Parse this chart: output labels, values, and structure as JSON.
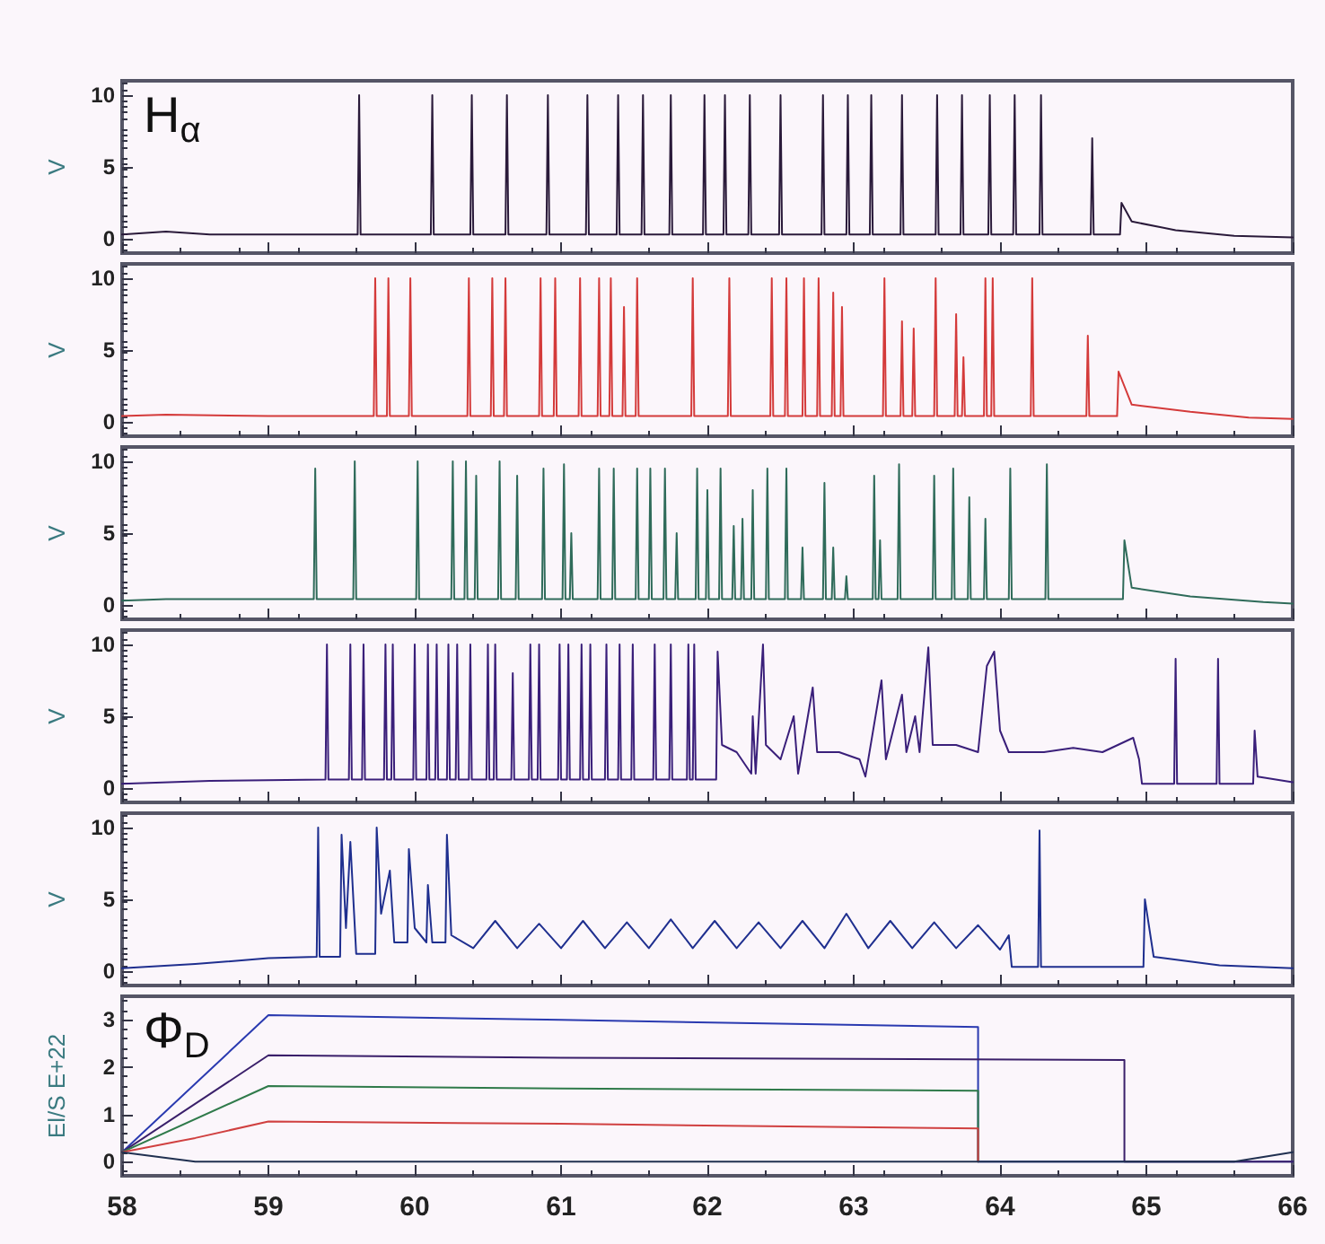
{
  "chart_data": [
    {
      "type": "line",
      "ylabel": "V",
      "annotations": [
        "H$_{α}$"
      ],
      "xlim": [
        58,
        66
      ],
      "xticks": [
        58,
        59,
        60,
        61,
        62,
        63,
        64,
        65,
        66
      ],
      "ylim": [
        -1,
        11
      ],
      "yticks": [
        0,
        5,
        10
      ],
      "tick_labels": "y",
      "marker": "none",
      "series": [
        {
          "color": "#2a1a3a",
          "x": [
            58,
            58.3,
            58.6,
            59.61,
            59.62,
            59.63,
            60.11,
            60.12,
            60.13,
            60.38,
            60.39,
            60.4,
            60.62,
            60.63,
            60.64,
            60.9,
            60.91,
            60.92,
            61.17,
            61.18,
            61.19,
            61.38,
            61.39,
            61.4,
            61.55,
            61.56,
            61.57,
            61.74,
            61.75,
            61.76,
            61.97,
            61.98,
            61.99,
            62.11,
            62.12,
            62.13,
            62.28,
            62.29,
            62.3,
            62.49,
            62.5,
            62.51,
            62.78,
            62.79,
            62.8,
            62.95,
            62.96,
            62.97,
            63.11,
            63.12,
            63.13,
            63.32,
            63.33,
            63.34,
            63.56,
            63.57,
            63.58,
            63.73,
            63.74,
            63.75,
            63.92,
            63.93,
            63.94,
            64.09,
            64.1,
            64.11,
            64.27,
            64.28,
            64.29,
            64.62,
            64.63,
            64.64,
            64.82,
            64.83,
            64.9,
            65.2,
            65.6,
            66
          ],
          "values": [
            0.3,
            0.5,
            0.3,
            0.3,
            10,
            0.3,
            0.3,
            10,
            0.3,
            0.3,
            10,
            0.3,
            0.3,
            10,
            0.3,
            0.3,
            10,
            0.3,
            0.3,
            10,
            0.3,
            0.3,
            10,
            0.3,
            0.3,
            10,
            0.3,
            0.3,
            10,
            0.3,
            0.3,
            10,
            0.3,
            0.3,
            10,
            0.3,
            0.3,
            10,
            0.3,
            0.3,
            10,
            0.3,
            0.3,
            10,
            0.3,
            0.3,
            10,
            0.3,
            0.3,
            10,
            0.3,
            0.3,
            10,
            0.3,
            0.3,
            10,
            0.3,
            0.3,
            10,
            0.3,
            0.3,
            10,
            0.3,
            0.3,
            10,
            0.3,
            0.3,
            10,
            0.3,
            0.3,
            7,
            0.3,
            0.3,
            2.5,
            1.2,
            0.6,
            0.2,
            0.1
          ]
        }
      ]
    },
    {
      "type": "line",
      "ylabel": "V",
      "xlim": [
        58,
        66
      ],
      "xticks": [
        58,
        59,
        60,
        61,
        62,
        63,
        64,
        65,
        66
      ],
      "ylim": [
        -1,
        11
      ],
      "yticks": [
        0,
        5,
        10
      ],
      "tick_labels": "y",
      "marker": "none",
      "series": [
        {
          "color": "#d43a3a",
          "x": [
            58,
            58.3,
            59,
            59.72,
            59.73,
            59.74,
            59.81,
            59.82,
            59.83,
            59.96,
            59.97,
            59.98,
            60.36,
            60.37,
            60.38,
            60.52,
            60.53,
            60.54,
            60.61,
            60.62,
            60.63,
            60.85,
            60.86,
            60.87,
            60.95,
            60.96,
            60.97,
            61.12,
            61.13,
            61.14,
            61.25,
            61.26,
            61.27,
            61.33,
            61.34,
            61.35,
            61.42,
            61.43,
            61.44,
            61.51,
            61.52,
            61.53,
            61.89,
            61.9,
            61.91,
            62.14,
            62.15,
            62.16,
            62.43,
            62.44,
            62.45,
            62.53,
            62.54,
            62.55,
            62.65,
            62.66,
            62.67,
            62.75,
            62.76,
            62.77,
            62.85,
            62.86,
            62.87,
            62.91,
            62.92,
            62.93,
            63.2,
            63.21,
            63.22,
            63.32,
            63.33,
            63.34,
            63.4,
            63.41,
            63.42,
            63.55,
            63.56,
            63.57,
            63.69,
            63.7,
            63.71,
            63.74,
            63.75,
            63.76,
            63.89,
            63.9,
            63.91,
            63.94,
            63.95,
            63.96,
            64.21,
            64.22,
            64.23,
            64.59,
            64.6,
            64.61,
            64.8,
            64.81,
            64.9,
            65.3,
            65.7,
            66
          ],
          "values": [
            0.4,
            0.5,
            0.4,
            0.4,
            10,
            0.4,
            0.4,
            10,
            0.4,
            0.4,
            10,
            0.4,
            0.4,
            10,
            0.4,
            0.4,
            10,
            0.4,
            0.4,
            10,
            0.4,
            0.4,
            10,
            0.4,
            0.4,
            10,
            0.4,
            0.4,
            10,
            0.4,
            0.4,
            10,
            0.4,
            0.4,
            10,
            0.4,
            0.4,
            8,
            0.4,
            0.4,
            10,
            0.4,
            0.4,
            10,
            0.4,
            0.4,
            10,
            0.4,
            0.4,
            10,
            0.4,
            0.4,
            10,
            0.4,
            0.4,
            10,
            0.4,
            0.4,
            10,
            0.4,
            0.4,
            9,
            0.4,
            0.4,
            8,
            0.4,
            0.4,
            10,
            0.4,
            0.4,
            7,
            0.4,
            0.4,
            6.5,
            0.4,
            0.4,
            10,
            0.4,
            0.4,
            7.5,
            0.4,
            0.4,
            4.5,
            0.4,
            0.4,
            10,
            0.4,
            0.4,
            10,
            0.4,
            0.4,
            10,
            0.4,
            0.4,
            6,
            0.4,
            0.4,
            3.5,
            1.2,
            0.7,
            0.3,
            0.2
          ]
        }
      ]
    },
    {
      "type": "line",
      "ylabel": "V",
      "xlim": [
        58,
        66
      ],
      "xticks": [
        58,
        59,
        60,
        61,
        62,
        63,
        64,
        65,
        66
      ],
      "ylim": [
        -1,
        11
      ],
      "yticks": [
        0,
        5,
        10
      ],
      "tick_labels": "y",
      "marker": "none",
      "series": [
        {
          "color": "#2f6b5a",
          "x": [
            58,
            58.3,
            59,
            59.31,
            59.32,
            59.33,
            59.58,
            59.59,
            59.6,
            60.01,
            60.02,
            60.03,
            60.25,
            60.26,
            60.27,
            60.34,
            60.35,
            60.36,
            60.41,
            60.42,
            60.43,
            60.57,
            60.58,
            60.59,
            60.69,
            60.7,
            60.71,
            60.87,
            60.88,
            60.89,
            61.01,
            61.02,
            61.03,
            61.06,
            61.07,
            61.08,
            61.25,
            61.26,
            61.27,
            61.35,
            61.36,
            61.37,
            61.51,
            61.52,
            61.53,
            61.6,
            61.61,
            61.62,
            61.7,
            61.71,
            61.72,
            61.78,
            61.79,
            61.8,
            61.92,
            61.93,
            61.94,
            61.99,
            62,
            62.01,
            62.08,
            62.09,
            62.1,
            62.17,
            62.18,
            62.19,
            62.23,
            62.24,
            62.25,
            62.3,
            62.31,
            62.32,
            62.4,
            62.41,
            62.42,
            62.53,
            62.54,
            62.55,
            62.64,
            62.65,
            62.66,
            62.79,
            62.8,
            62.81,
            62.85,
            62.86,
            62.87,
            62.94,
            62.95,
            62.96,
            63.13,
            63.14,
            63.15,
            63.17,
            63.18,
            63.19,
            63.3,
            63.31,
            63.32,
            63.54,
            63.55,
            63.56,
            63.67,
            63.68,
            63.69,
            63.78,
            63.79,
            63.8,
            63.89,
            63.9,
            63.91,
            64.06,
            64.07,
            64.08,
            64.31,
            64.32,
            64.33,
            64.84,
            64.85,
            64.9,
            65.3,
            65.8,
            66
          ],
          "values": [
            0.3,
            0.4,
            0.4,
            0.4,
            9.5,
            0.4,
            0.4,
            10,
            0.4,
            0.4,
            10,
            0.4,
            0.4,
            10,
            0.4,
            0.4,
            10,
            0.4,
            0.4,
            9,
            0.4,
            0.4,
            10,
            0.4,
            0.4,
            9,
            0.4,
            0.4,
            9.5,
            0.4,
            0.4,
            9.8,
            0.4,
            0.4,
            5,
            0.4,
            0.4,
            9.5,
            0.4,
            0.4,
            9.5,
            0.4,
            0.4,
            9.5,
            0.4,
            0.4,
            9.5,
            0.4,
            0.4,
            9.5,
            0.4,
            0.4,
            5,
            0.4,
            0.4,
            9.5,
            0.4,
            0.4,
            8,
            0.4,
            0.4,
            9.5,
            0.4,
            0.4,
            5.5,
            0.4,
            0.4,
            6,
            0.4,
            0.4,
            8,
            0.4,
            0.4,
            9.5,
            0.4,
            0.4,
            9.5,
            0.4,
            0.4,
            4,
            0.4,
            0.4,
            8.5,
            0.4,
            0.4,
            4,
            0.4,
            0.4,
            2,
            0.4,
            0.4,
            9,
            0.4,
            0.4,
            4.5,
            0.4,
            0.4,
            9.8,
            0.4,
            0.4,
            9,
            0.4,
            0.4,
            9.5,
            0.4,
            0.4,
            7.5,
            0.4,
            0.4,
            6,
            0.4,
            0.4,
            9.5,
            0.4,
            0.4,
            9.8,
            0.4,
            0.4,
            4.5,
            1.2,
            0.6,
            0.2,
            0.1
          ]
        }
      ]
    },
    {
      "type": "line",
      "ylabel": "V",
      "xlim": [
        58,
        66
      ],
      "xticks": [
        58,
        59,
        60,
        61,
        62,
        63,
        64,
        65,
        66
      ],
      "ylim": [
        -1,
        11
      ],
      "yticks": [
        0,
        5,
        10
      ],
      "tick_labels": "y",
      "marker": "none",
      "series": [
        {
          "color": "#3a1f7a",
          "x": [
            58,
            58.6,
            59.39,
            59.4,
            59.41,
            59.55,
            59.56,
            59.57,
            59.64,
            59.65,
            59.66,
            59.79,
            59.8,
            59.81,
            59.84,
            59.85,
            59.86,
            59.99,
            60,
            60.01,
            60.08,
            60.09,
            60.1,
            60.14,
            60.15,
            60.16,
            60.22,
            60.23,
            60.24,
            60.28,
            60.29,
            60.3,
            60.37,
            60.38,
            60.39,
            60.49,
            60.5,
            60.51,
            60.54,
            60.55,
            60.56,
            60.66,
            60.67,
            60.68,
            60.78,
            60.79,
            60.8,
            60.84,
            60.85,
            60.86,
            60.98,
            60.99,
            61,
            61.04,
            61.05,
            61.06,
            61.13,
            61.14,
            61.15,
            61.19,
            61.2,
            61.21,
            61.3,
            61.31,
            61.32,
            61.39,
            61.4,
            61.41,
            61.48,
            61.49,
            61.5,
            61.63,
            61.64,
            61.65,
            61.74,
            61.75,
            61.76,
            61.86,
            61.87,
            61.88,
            61.9,
            61.91,
            61.92,
            62.06,
            62.07,
            62.1,
            62.2,
            62.3,
            62.31,
            62.33,
            62.38,
            62.4,
            62.5,
            62.59,
            62.62,
            62.72,
            62.75,
            62.9,
            63.04,
            63.08,
            63.19,
            63.22,
            63.33,
            63.36,
            63.42,
            63.45,
            63.51,
            63.54,
            63.7,
            63.85,
            63.91,
            63.96,
            64,
            64.06,
            64.3,
            64.5,
            64.7,
            64.91,
            64.95,
            64.97,
            65.19,
            65.2,
            65.21,
            65.48,
            65.49,
            65.5,
            65.73,
            65.74,
            65.76,
            66
          ],
          "values": [
            0.3,
            0.5,
            0.6,
            10,
            0.6,
            0.6,
            10,
            0.6,
            0.6,
            10,
            0.6,
            0.6,
            10,
            0.6,
            0.6,
            10,
            0.6,
            0.6,
            10,
            0.6,
            0.6,
            10,
            0.6,
            0.6,
            10,
            0.6,
            0.6,
            10,
            0.6,
            0.6,
            10,
            0.6,
            0.6,
            10,
            0.6,
            0.6,
            10,
            0.6,
            0.6,
            10,
            0.6,
            0.6,
            8,
            0.6,
            0.6,
            10,
            0.6,
            0.6,
            10,
            0.6,
            0.6,
            10,
            0.6,
            0.6,
            10,
            0.6,
            0.6,
            10,
            0.6,
            0.6,
            10,
            0.6,
            0.6,
            10,
            0.6,
            0.6,
            10,
            0.6,
            0.6,
            10,
            0.6,
            0.6,
            10,
            0.6,
            0.6,
            10,
            0.6,
            0.6,
            10,
            0.6,
            0.6,
            10,
            0.6,
            0.6,
            9.5,
            3,
            2.5,
            1,
            5,
            1,
            10,
            3,
            2,
            5,
            1,
            7,
            2.5,
            2.5,
            2,
            0.8,
            7.5,
            2,
            6.5,
            2.5,
            5,
            2.5,
            9.8,
            3,
            3,
            2.5,
            8.5,
            9.5,
            4,
            2.5,
            2.5,
            2.8,
            2.5,
            3.5,
            2,
            0.3,
            0.3,
            9,
            0.3,
            0.3,
            9,
            0.3,
            0.3,
            4,
            0.8,
            0.4
          ]
        }
      ]
    },
    {
      "type": "line",
      "ylabel": "V",
      "xlim": [
        58,
        66
      ],
      "xticks": [
        58,
        59,
        60,
        61,
        62,
        63,
        64,
        65,
        66
      ],
      "ylim": [
        -1,
        11
      ],
      "yticks": [
        0,
        5,
        10
      ],
      "tick_labels": "y",
      "marker": "none",
      "series": [
        {
          "color": "#1f2f8f",
          "x": [
            58,
            58.5,
            59,
            59.33,
            59.34,
            59.35,
            59.49,
            59.5,
            59.53,
            59.56,
            59.6,
            59.73,
            59.74,
            59.77,
            59.83,
            59.86,
            59.95,
            59.96,
            60,
            60.08,
            60.09,
            60.12,
            60.21,
            60.22,
            60.25,
            60.4,
            60.55,
            60.7,
            60.85,
            61,
            61.15,
            61.3,
            61.45,
            61.6,
            61.75,
            61.9,
            62.05,
            62.2,
            62.35,
            62.5,
            62.65,
            62.8,
            62.95,
            63.1,
            63.25,
            63.4,
            63.55,
            63.7,
            63.85,
            64,
            64.06,
            64.08,
            64.26,
            64.27,
            64.28,
            64.98,
            64.99,
            65.05,
            65.5,
            66
          ],
          "values": [
            0.2,
            0.5,
            0.9,
            1,
            10,
            1,
            1,
            9.5,
            3,
            9,
            1.2,
            1.2,
            10,
            4,
            7,
            2,
            2,
            8.5,
            3,
            2,
            6,
            2,
            2,
            9.5,
            2.5,
            1.6,
            3.5,
            1.6,
            3.3,
            1.6,
            3.5,
            1.6,
            3.4,
            1.6,
            3.6,
            1.6,
            3.5,
            1.6,
            3.4,
            1.6,
            3.5,
            1.6,
            4,
            1.6,
            3.5,
            1.6,
            3.4,
            1.6,
            3.2,
            1.5,
            2.5,
            0.3,
            0.3,
            9.8,
            0.3,
            0.3,
            5,
            1,
            0.4,
            0.2
          ]
        }
      ]
    },
    {
      "type": "line",
      "ylabel": "El/S E+22",
      "annotations": [
        "Φ$_{D}$"
      ],
      "xlim": [
        58,
        66
      ],
      "xticks": [
        58,
        59,
        60,
        61,
        62,
        63,
        64,
        65,
        66
      ],
      "ylim": [
        -0.3,
        3.5
      ],
      "yticks": [
        0,
        1,
        2,
        3
      ],
      "marker": "none",
      "series": [
        {
          "color": "#2a3ab0",
          "x": [
            58,
            59,
            61,
            63.85,
            63.85,
            66
          ],
          "values": [
            0.2,
            3.1,
            3,
            2.85,
            0,
            0
          ]
        },
        {
          "color": "#3a1f6a",
          "x": [
            58,
            59,
            61,
            64.85,
            64.85,
            66
          ],
          "values": [
            0.2,
            2.25,
            2.2,
            2.15,
            0,
            0
          ]
        },
        {
          "color": "#2f7a4a",
          "x": [
            58,
            59,
            61,
            63.85,
            63.85
          ],
          "values": [
            0.2,
            1.6,
            1.55,
            1.5,
            0
          ]
        },
        {
          "color": "#d04040",
          "x": [
            58,
            58.5,
            59,
            61,
            63.85,
            63.85
          ],
          "values": [
            0.2,
            0.5,
            0.85,
            0.8,
            0.7,
            0
          ]
        },
        {
          "color": "#203050",
          "x": [
            58,
            58.5,
            62,
            65.6,
            66
          ],
          "values": [
            0.2,
            0,
            0,
            0,
            0.2
          ]
        }
      ]
    }
  ]
}
